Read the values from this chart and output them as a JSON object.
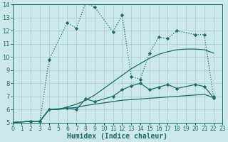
{
  "xlabel": "Humidex (Indice chaleur)",
  "bg_color": "#cce8e8",
  "grid_color": "#aacccc",
  "line_color": "#1a6b6b",
  "xlim": [
    0,
    23
  ],
  "ylim": [
    5,
    14
  ],
  "xticks": [
    0,
    1,
    2,
    3,
    4,
    5,
    6,
    7,
    8,
    9,
    10,
    11,
    12,
    13,
    14,
    15,
    16,
    17,
    18,
    19,
    20,
    21,
    22,
    23
  ],
  "yticks": [
    5,
    6,
    7,
    8,
    9,
    10,
    11,
    12,
    13,
    14
  ],
  "lines": [
    {
      "x": [
        0,
        2,
        3,
        4,
        5,
        6,
        7,
        8,
        9,
        10,
        11,
        12,
        13,
        14,
        15,
        16,
        17,
        18,
        19,
        20,
        21,
        22
      ],
      "y": [
        5,
        5.1,
        5.1,
        6.0,
        6.0,
        6.1,
        6.15,
        6.3,
        6.4,
        6.5,
        6.6,
        6.7,
        6.75,
        6.8,
        6.85,
        6.9,
        6.95,
        7.0,
        7.05,
        7.1,
        7.15,
        6.9
      ],
      "style": "-",
      "marker": null,
      "lw": 0.9
    },
    {
      "x": [
        0,
        2,
        3,
        4,
        5,
        6,
        7,
        8,
        9,
        10,
        11,
        12,
        13,
        14,
        15,
        16,
        17,
        18,
        19,
        20,
        21,
        22
      ],
      "y": [
        5,
        5.1,
        5.1,
        6.0,
        6.0,
        6.2,
        6.4,
        6.7,
        7.1,
        7.6,
        8.1,
        8.6,
        9.1,
        9.5,
        9.9,
        10.2,
        10.4,
        10.55,
        10.6,
        10.6,
        10.55,
        10.3
      ],
      "style": "-",
      "marker": null,
      "lw": 0.9
    },
    {
      "x": [
        0,
        2,
        3,
        4,
        6,
        7,
        8,
        9,
        11,
        12,
        13,
        14,
        15,
        16,
        17,
        18,
        20,
        21,
        22
      ],
      "y": [
        5,
        5.1,
        5.1,
        9.8,
        12.6,
        12.2,
        14.1,
        13.8,
        11.9,
        13.2,
        8.5,
        8.3,
        10.3,
        11.5,
        11.4,
        12.0,
        11.7,
        11.7,
        7.0
      ],
      "style": ":",
      "marker": "D",
      "ms": 2.2,
      "lw": 0.9
    },
    {
      "x": [
        0,
        2,
        3,
        4,
        6,
        7,
        8,
        9,
        11,
        12,
        13,
        14,
        15,
        16,
        17,
        18,
        20,
        21,
        22
      ],
      "y": [
        5,
        5.1,
        5.1,
        6.0,
        6.1,
        6.0,
        6.8,
        6.6,
        7.0,
        7.5,
        7.8,
        8.0,
        7.5,
        7.7,
        7.9,
        7.6,
        7.9,
        7.75,
        6.9
      ],
      "style": "-",
      "marker": "D",
      "ms": 2.2,
      "lw": 0.9
    }
  ]
}
